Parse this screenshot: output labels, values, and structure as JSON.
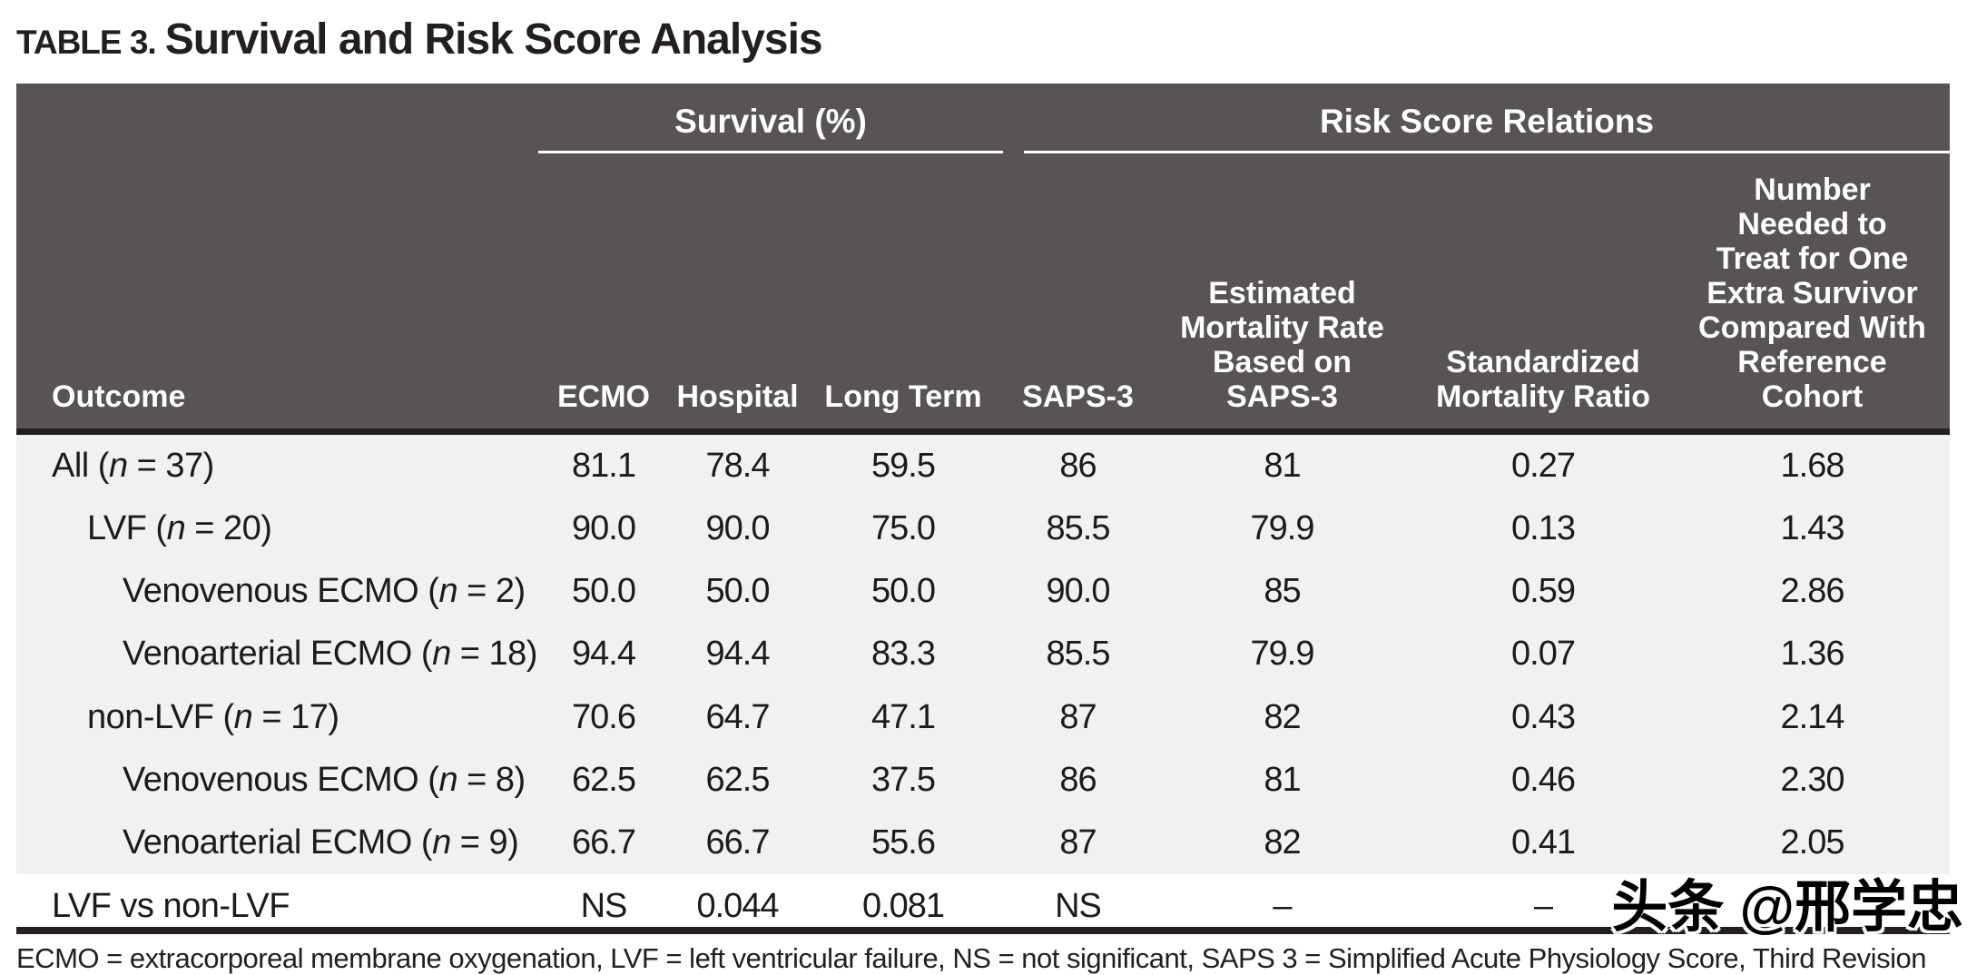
{
  "title": {
    "prefix": "TABLE 3.",
    "text": "Survival and Risk Score Analysis"
  },
  "colors": {
    "header_bg": "#585456",
    "body_bg": "#f2f1f1",
    "header_text": "#ffffff",
    "text": "#231f20"
  },
  "table": {
    "groups": {
      "survival": "Survival (%)",
      "risk": "Risk Score Relations"
    },
    "columns": [
      "Outcome",
      "ECMO",
      "Hospital",
      "Long Term",
      "SAPS-3",
      "Estimated\nMortality Rate\nBased on\nSAPS-3",
      "Standardized\nMortality Ratio",
      "Number\nNeeded to\nTreat for One\nExtra Survivor\nCompared With\nReference\nCohort"
    ],
    "rows": [
      {
        "outcome_pre": "All (",
        "outcome_n": "n",
        "outcome_post": " = 37)",
        "ecmo": "81.1",
        "hospital": "78.4",
        "long_term": "59.5",
        "saps3": "86",
        "est_mortality": "81",
        "smr": "0.27",
        "nnt": "1.68"
      },
      {
        "outcome_pre": "LVF (",
        "outcome_n": "n",
        "outcome_post": " = 20)",
        "ecmo": "90.0",
        "hospital": "90.0",
        "long_term": "75.0",
        "saps3": "85.5",
        "est_mortality": "79.9",
        "smr": "0.13",
        "nnt": "1.43"
      },
      {
        "outcome_pre": "Venovenous ECMO (",
        "outcome_n": "n",
        "outcome_post": " = 2)",
        "ecmo": "50.0",
        "hospital": "50.0",
        "long_term": "50.0",
        "saps3": "90.0",
        "est_mortality": "85",
        "smr": "0.59",
        "nnt": "2.86"
      },
      {
        "outcome_pre": "Venoarterial ECMO (",
        "outcome_n": "n",
        "outcome_post": " = 18)",
        "ecmo": "94.4",
        "hospital": "94.4",
        "long_term": "83.3",
        "saps3": "85.5",
        "est_mortality": "79.9",
        "smr": "0.07",
        "nnt": "1.36"
      },
      {
        "outcome_pre": "non-LVF (",
        "outcome_n": "n",
        "outcome_post": " = 17)",
        "ecmo": "70.6",
        "hospital": "64.7",
        "long_term": "47.1",
        "saps3": "87",
        "est_mortality": "82",
        "smr": "0.43",
        "nnt": "2.14"
      },
      {
        "outcome_pre": "Venovenous ECMO (",
        "outcome_n": "n",
        "outcome_post": " = 8)",
        "ecmo": "62.5",
        "hospital": "62.5",
        "long_term": "37.5",
        "saps3": "86",
        "est_mortality": "81",
        "smr": "0.46",
        "nnt": "2.30"
      },
      {
        "outcome_pre": "Venoarterial ECMO (",
        "outcome_n": "n",
        "outcome_post": " = 9)",
        "ecmo": "66.7",
        "hospital": "66.7",
        "long_term": "55.6",
        "saps3": "87",
        "est_mortality": "82",
        "smr": "0.41",
        "nnt": "2.05"
      }
    ],
    "footer_row": {
      "outcome": "LVF vs non-LVF",
      "ecmo": "NS",
      "hospital": "0.044",
      "long_term": "0.081",
      "saps3": "NS",
      "est_mortality": "–",
      "smr": "–",
      "nnt": ""
    }
  },
  "footnote": "ECMO = extracorporeal membrane oxygenation, LVF = left ventricular failure, NS = not significant, SAPS 3 = Simplified Acute Physiology Score, Third Revision",
  "watermark": "头条 @邢学忠"
}
